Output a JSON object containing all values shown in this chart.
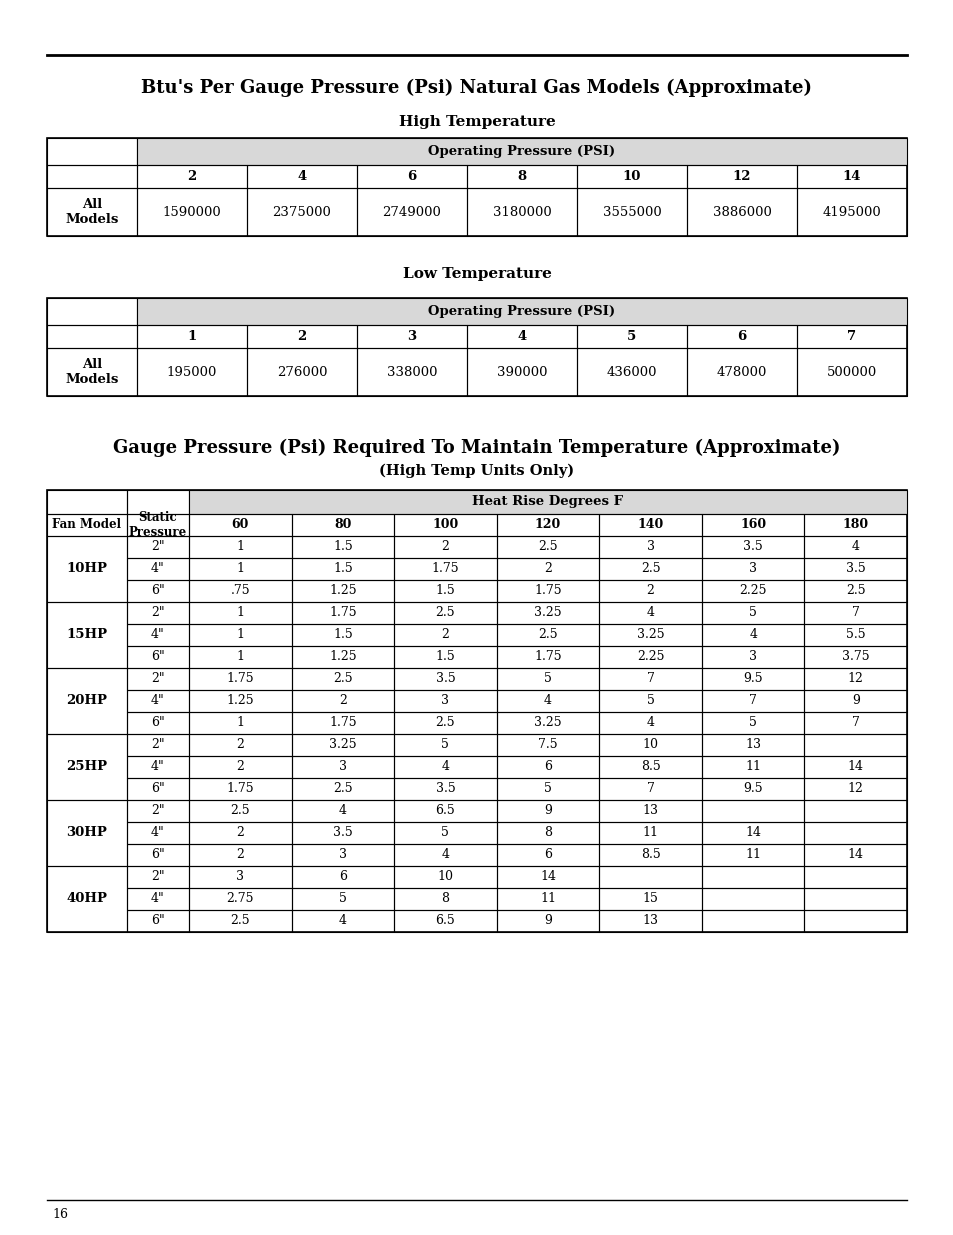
{
  "page_title1": "Btu's Per Gauge Pressure (Psi) Natural Gas Models (Approximate)",
  "high_temp_label": "High Temperature",
  "low_temp_label": "Low Temperature",
  "op_pressure_label": "Operating Pressure (PSI)",
  "high_psi_cols": [
    "2",
    "4",
    "6",
    "8",
    "10",
    "12",
    "14"
  ],
  "high_btu_values": [
    "1590000",
    "2375000",
    "2749000",
    "3180000",
    "3555000",
    "3886000",
    "4195000"
  ],
  "low_psi_cols": [
    "1",
    "2",
    "3",
    "4",
    "5",
    "6",
    "7"
  ],
  "low_btu_values": [
    "195000",
    "276000",
    "338000",
    "390000",
    "436000",
    "478000",
    "500000"
  ],
  "all_models_label": "All\nModels",
  "page_title2": "Gauge Pressure (Psi) Required To Maintain Temperature (Approximate)",
  "page_subtitle2": "(High Temp Units Only)",
  "heat_rise_label": "Heat Rise Degrees F",
  "fan_model_label": "Fan Model",
  "static_pressure_label": "Static\nPressure",
  "heat_cols": [
    "60",
    "80",
    "100",
    "120",
    "140",
    "160",
    "180"
  ],
  "fan_data": [
    {
      "model": "10HP",
      "rows": [
        {
          "sp": "2\"",
          "vals": [
            "1",
            "1.5",
            "2",
            "2.5",
            "3",
            "3.5",
            "4"
          ]
        },
        {
          "sp": "4\"",
          "vals": [
            "1",
            "1.5",
            "1.75",
            "2",
            "2.5",
            "3",
            "3.5"
          ]
        },
        {
          "sp": "6\"",
          "vals": [
            ".75",
            "1.25",
            "1.5",
            "1.75",
            "2",
            "2.25",
            "2.5"
          ]
        }
      ]
    },
    {
      "model": "15HP",
      "rows": [
        {
          "sp": "2\"",
          "vals": [
            "1",
            "1.75",
            "2.5",
            "3.25",
            "4",
            "5",
            "7"
          ]
        },
        {
          "sp": "4\"",
          "vals": [
            "1",
            "1.5",
            "2",
            "2.5",
            "3.25",
            "4",
            "5.5"
          ]
        },
        {
          "sp": "6\"",
          "vals": [
            "1",
            "1.25",
            "1.5",
            "1.75",
            "2.25",
            "3",
            "3.75"
          ]
        }
      ]
    },
    {
      "model": "20HP",
      "rows": [
        {
          "sp": "2\"",
          "vals": [
            "1.75",
            "2.5",
            "3.5",
            "5",
            "7",
            "9.5",
            "12"
          ]
        },
        {
          "sp": "4\"",
          "vals": [
            "1.25",
            "2",
            "3",
            "4",
            "5",
            "7",
            "9"
          ]
        },
        {
          "sp": "6\"",
          "vals": [
            "1",
            "1.75",
            "2.5",
            "3.25",
            "4",
            "5",
            "7"
          ]
        }
      ]
    },
    {
      "model": "25HP",
      "rows": [
        {
          "sp": "2\"",
          "vals": [
            "2",
            "3.25",
            "5",
            "7.5",
            "10",
            "13",
            ""
          ]
        },
        {
          "sp": "4\"",
          "vals": [
            "2",
            "3",
            "4",
            "6",
            "8.5",
            "11",
            "14"
          ]
        },
        {
          "sp": "6\"",
          "vals": [
            "1.75",
            "2.5",
            "3.5",
            "5",
            "7",
            "9.5",
            "12"
          ]
        }
      ]
    },
    {
      "model": "30HP",
      "rows": [
        {
          "sp": "2\"",
          "vals": [
            "2.5",
            "4",
            "6.5",
            "9",
            "13",
            "",
            ""
          ]
        },
        {
          "sp": "4\"",
          "vals": [
            "2",
            "3.5",
            "5",
            "8",
            "11",
            "14",
            ""
          ]
        },
        {
          "sp": "6\"",
          "vals": [
            "2",
            "3",
            "4",
            "6",
            "8.5",
            "11",
            "14"
          ]
        }
      ]
    },
    {
      "model": "40HP",
      "rows": [
        {
          "sp": "2\"",
          "vals": [
            "3",
            "6",
            "10",
            "14",
            "",
            "",
            ""
          ]
        },
        {
          "sp": "4\"",
          "vals": [
            "2.75",
            "5",
            "8",
            "11",
            "15",
            "",
            ""
          ]
        },
        {
          "sp": "6\"",
          "vals": [
            "2.5",
            "4",
            "6.5",
            "9",
            "13",
            "",
            ""
          ]
        }
      ]
    }
  ],
  "page_number": "16",
  "bg_color": "#ffffff",
  "header_bg": "#d8d8d8"
}
